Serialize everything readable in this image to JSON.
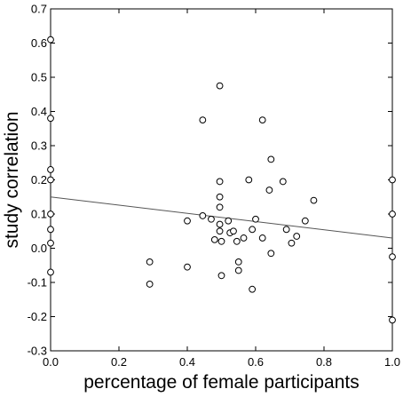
{
  "chart_data": {
    "type": "scatter",
    "xlabel": "percentage of female participants",
    "ylabel": "study correlation",
    "xlim": [
      0,
      1
    ],
    "ylim": [
      -0.3,
      0.7
    ],
    "xticks": [
      "0.0",
      "0.2",
      "0.4",
      "0.6",
      "0.8",
      "1.0"
    ],
    "yticks": [
      "-0.3",
      "-0.2",
      "-0.1",
      "0.0",
      "0.1",
      "0.2",
      "0.3",
      "0.4",
      "0.5",
      "0.6",
      "0.7"
    ],
    "grid": false,
    "points": [
      {
        "x": 0.0,
        "y": 0.61
      },
      {
        "x": 0.0,
        "y": 0.38
      },
      {
        "x": 0.0,
        "y": 0.23
      },
      {
        "x": 0.0,
        "y": 0.2
      },
      {
        "x": 0.0,
        "y": 0.1
      },
      {
        "x": 0.0,
        "y": 0.055
      },
      {
        "x": 0.0,
        "y": 0.015
      },
      {
        "x": 0.0,
        "y": -0.07
      },
      {
        "x": 0.29,
        "y": -0.04
      },
      {
        "x": 0.29,
        "y": -0.105
      },
      {
        "x": 0.4,
        "y": 0.08
      },
      {
        "x": 0.4,
        "y": -0.055
      },
      {
        "x": 0.445,
        "y": 0.375
      },
      {
        "x": 0.445,
        "y": 0.095
      },
      {
        "x": 0.47,
        "y": 0.085
      },
      {
        "x": 0.48,
        "y": 0.025
      },
      {
        "x": 0.495,
        "y": 0.475
      },
      {
        "x": 0.495,
        "y": 0.195
      },
      {
        "x": 0.495,
        "y": 0.15
      },
      {
        "x": 0.495,
        "y": 0.12
      },
      {
        "x": 0.495,
        "y": 0.07
      },
      {
        "x": 0.495,
        "y": 0.05
      },
      {
        "x": 0.5,
        "y": 0.02
      },
      {
        "x": 0.5,
        "y": -0.08
      },
      {
        "x": 0.52,
        "y": 0.08
      },
      {
        "x": 0.525,
        "y": 0.045
      },
      {
        "x": 0.535,
        "y": 0.05
      },
      {
        "x": 0.545,
        "y": 0.02
      },
      {
        "x": 0.55,
        "y": -0.04
      },
      {
        "x": 0.55,
        "y": -0.065
      },
      {
        "x": 0.565,
        "y": 0.03
      },
      {
        "x": 0.58,
        "y": 0.2
      },
      {
        "x": 0.59,
        "y": 0.055
      },
      {
        "x": 0.59,
        "y": -0.12
      },
      {
        "x": 0.6,
        "y": 0.085
      },
      {
        "x": 0.62,
        "y": 0.375
      },
      {
        "x": 0.62,
        "y": 0.03
      },
      {
        "x": 0.64,
        "y": 0.17
      },
      {
        "x": 0.645,
        "y": 0.26
      },
      {
        "x": 0.645,
        "y": -0.015
      },
      {
        "x": 0.68,
        "y": 0.195
      },
      {
        "x": 0.69,
        "y": 0.055
      },
      {
        "x": 0.705,
        "y": 0.015
      },
      {
        "x": 0.72,
        "y": 0.035
      },
      {
        "x": 0.745,
        "y": 0.08
      },
      {
        "x": 0.77,
        "y": 0.14
      },
      {
        "x": 1.0,
        "y": 0.2
      },
      {
        "x": 1.0,
        "y": 0.1
      },
      {
        "x": 1.0,
        "y": -0.025
      },
      {
        "x": 1.0,
        "y": -0.21
      }
    ],
    "trendline": {
      "x": [
        0.0,
        1.0
      ],
      "y": [
        0.15,
        0.03
      ]
    }
  }
}
